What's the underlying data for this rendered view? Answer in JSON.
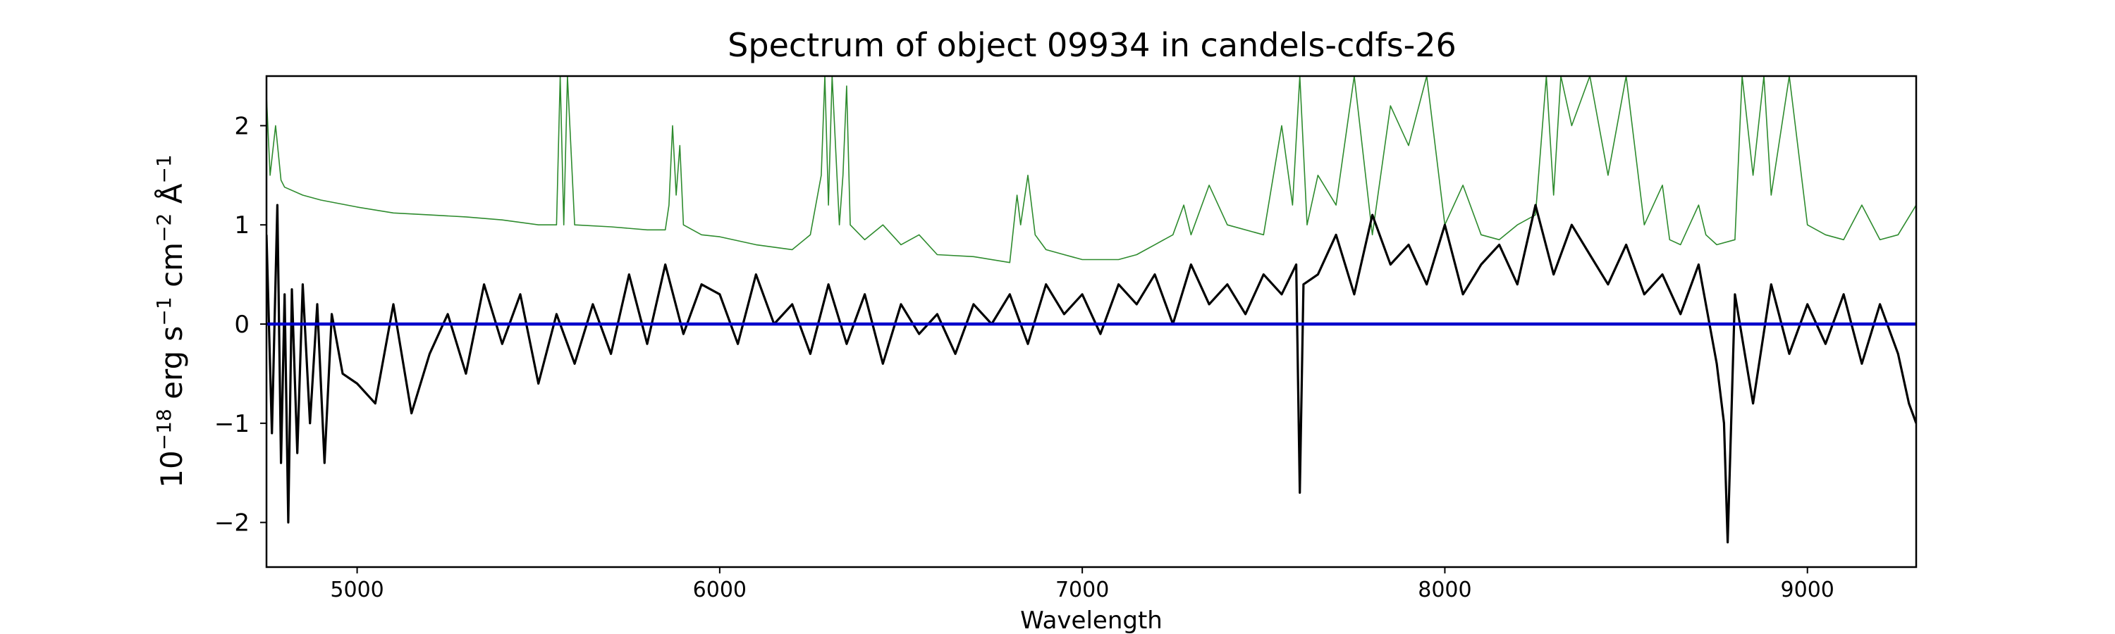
{
  "chart_data": {
    "type": "line",
    "title": "Spectrum of object 09934 in candels-cdfs-26",
    "xlabel": "Wavelength",
    "ylabel_parts": [
      "10",
      "−18",
      " erg s",
      "−1",
      " cm",
      "−2",
      " Å",
      "−1"
    ],
    "xlim": [
      4750,
      9300
    ],
    "ylim": [
      -2.45,
      2.5
    ],
    "x_ticks": [
      5000,
      6000,
      7000,
      8000,
      9000
    ],
    "x_tick_labels": [
      "5000",
      "6000",
      "7000",
      "8000",
      "9000"
    ],
    "y_ticks": [
      -2,
      -1,
      0,
      1,
      2
    ],
    "y_tick_labels": [
      "−2",
      "−1",
      "0",
      "1",
      "2"
    ],
    "grid": false,
    "colors": {
      "flux": "#000000",
      "error": "#2e8b2e",
      "zero": "#0000cc"
    },
    "series": [
      {
        "role": "flux",
        "x": [
          4750,
          4765,
          4780,
          4790,
          4800,
          4810,
          4820,
          4835,
          4850,
          4870,
          4890,
          4910,
          4930,
          4960,
          5000,
          5050,
          5100,
          5150,
          5200,
          5250,
          5300,
          5350,
          5400,
          5450,
          5500,
          5550,
          5600,
          5650,
          5700,
          5750,
          5800,
          5850,
          5900,
          5950,
          6000,
          6050,
          6100,
          6150,
          6200,
          6250,
          6300,
          6350,
          6400,
          6450,
          6500,
          6550,
          6600,
          6650,
          6700,
          6750,
          6800,
          6850,
          6900,
          6950,
          7000,
          7050,
          7100,
          7150,
          7200,
          7250,
          7300,
          7350,
          7400,
          7450,
          7500,
          7550,
          7590,
          7600,
          7610,
          7650,
          7700,
          7750,
          7800,
          7850,
          7900,
          7950,
          8000,
          8050,
          8100,
          8150,
          8200,
          8250,
          8300,
          8350,
          8400,
          8450,
          8500,
          8550,
          8600,
          8650,
          8700,
          8750,
          8770,
          8780,
          8800,
          8850,
          8900,
          8950,
          9000,
          9050,
          9100,
          9150,
          9200,
          9250,
          9280,
          9300
        ],
        "y": [
          0.9,
          -1.1,
          1.2,
          -1.4,
          0.3,
          -2.0,
          0.35,
          -1.3,
          0.4,
          -1.0,
          0.2,
          -1.4,
          0.1,
          -0.5,
          -0.6,
          -0.8,
          0.2,
          -0.9,
          -0.3,
          0.1,
          -0.5,
          0.4,
          -0.2,
          0.3,
          -0.6,
          0.1,
          -0.4,
          0.2,
          -0.3,
          0.5,
          -0.2,
          0.6,
          -0.1,
          0.4,
          0.3,
          -0.2,
          0.5,
          0.0,
          0.2,
          -0.3,
          0.4,
          -0.2,
          0.3,
          -0.4,
          0.2,
          -0.1,
          0.1,
          -0.3,
          0.2,
          0.0,
          0.3,
          -0.2,
          0.4,
          0.1,
          0.3,
          -0.1,
          0.4,
          0.2,
          0.5,
          0.0,
          0.6,
          0.2,
          0.4,
          0.1,
          0.5,
          0.3,
          0.6,
          -1.7,
          0.4,
          0.5,
          0.9,
          0.3,
          1.1,
          0.6,
          0.8,
          0.4,
          1.0,
          0.3,
          0.6,
          0.8,
          0.4,
          1.2,
          0.5,
          1.0,
          0.7,
          0.4,
          0.8,
          0.3,
          0.5,
          0.1,
          0.6,
          -0.4,
          -1.0,
          -2.2,
          0.3,
          -0.8,
          0.4,
          -0.3,
          0.2,
          -0.2,
          0.3,
          -0.4,
          0.2,
          -0.3,
          -0.8,
          -1.0
        ]
      },
      {
        "role": "error",
        "x": [
          4750,
          4760,
          4775,
          4790,
          4800,
          4850,
          4900,
          5000,
          5100,
          5200,
          5300,
          5400,
          5500,
          5550,
          5560,
          5570,
          5580,
          5600,
          5700,
          5800,
          5850,
          5860,
          5870,
          5880,
          5890,
          5900,
          5950,
          6000,
          6100,
          6200,
          6250,
          6280,
          6290,
          6300,
          6310,
          6330,
          6340,
          6350,
          6360,
          6400,
          6450,
          6500,
          6550,
          6600,
          6700,
          6800,
          6820,
          6830,
          6850,
          6870,
          6900,
          6950,
          7000,
          7050,
          7100,
          7150,
          7200,
          7250,
          7280,
          7300,
          7350,
          7400,
          7500,
          7550,
          7580,
          7600,
          7620,
          7650,
          7700,
          7750,
          7800,
          7850,
          7900,
          7950,
          8000,
          8050,
          8100,
          8150,
          8200,
          8250,
          8280,
          8300,
          8320,
          8350,
          8400,
          8450,
          8500,
          8550,
          8600,
          8620,
          8650,
          8700,
          8720,
          8750,
          8800,
          8820,
          8850,
          8880,
          8900,
          8950,
          9000,
          9050,
          9100,
          9150,
          9200,
          9250,
          9300
        ],
        "y": [
          2.3,
          1.5,
          2.0,
          1.45,
          1.38,
          1.3,
          1.25,
          1.18,
          1.12,
          1.1,
          1.08,
          1.05,
          1.0,
          1.0,
          2.5,
          1.0,
          2.5,
          1.0,
          0.98,
          0.95,
          0.95,
          1.2,
          2.0,
          1.3,
          1.8,
          1.0,
          0.9,
          0.88,
          0.8,
          0.75,
          0.9,
          1.5,
          2.5,
          1.2,
          2.5,
          1.0,
          1.5,
          2.4,
          1.0,
          0.85,
          1.0,
          0.8,
          0.9,
          0.7,
          0.68,
          0.62,
          1.3,
          1.0,
          1.5,
          0.9,
          0.75,
          0.7,
          0.65,
          0.65,
          0.65,
          0.7,
          0.8,
          0.9,
          1.2,
          0.9,
          1.4,
          1.0,
          0.9,
          2.0,
          1.2,
          2.5,
          1.0,
          1.5,
          1.2,
          2.5,
          0.9,
          2.2,
          1.8,
          2.5,
          1.0,
          1.4,
          0.9,
          0.85,
          1.0,
          1.1,
          2.5,
          1.3,
          2.5,
          2.0,
          2.5,
          1.5,
          2.5,
          1.0,
          1.4,
          0.85,
          0.8,
          1.2,
          0.9,
          0.8,
          0.85,
          2.5,
          1.5,
          2.5,
          1.3,
          2.5,
          1.0,
          0.9,
          0.85,
          1.2,
          0.85,
          0.9,
          1.2
        ]
      },
      {
        "role": "zero",
        "x": [
          4750,
          9300
        ],
        "y": [
          0,
          0
        ]
      }
    ]
  }
}
